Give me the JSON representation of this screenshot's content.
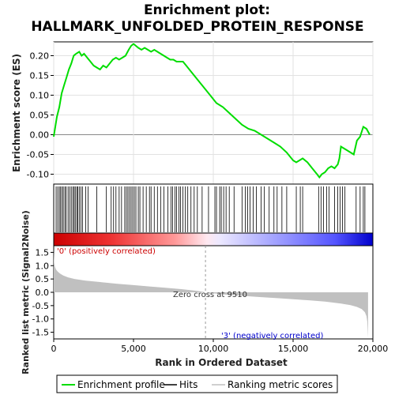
{
  "chart_data": {
    "type": "line",
    "title_line1": "Enrichment plot:",
    "title_line2": "HALLMARK_UNFOLDED_PROTEIN_RESPONSE",
    "xlabel": "Rank in Ordered Dataset",
    "xlim": [
      0,
      20000
    ],
    "x_ticks": [
      0,
      5000,
      10000,
      15000,
      20000
    ],
    "x_tick_labels": [
      "0",
      "5,000",
      "10,000",
      "15,000",
      "20,000"
    ],
    "es_panel": {
      "ylabel": "Enrichment score (ES)",
      "ylim": [
        -0.125,
        0.235
      ],
      "y_ticks": [
        -0.1,
        -0.05,
        0.0,
        0.05,
        0.1,
        0.15,
        0.2
      ],
      "y_tick_labels": [
        "-0.10",
        "-0.05",
        "0.00",
        "0.05",
        "0.10",
        "0.15",
        "0.20"
      ],
      "grid": true,
      "line_color": "#00dd00",
      "series": [
        {
          "x": [
            0,
            200,
            350,
            500,
            650,
            800,
            950,
            1100,
            1250,
            1400,
            1600,
            1750,
            1900,
            2100,
            2300,
            2500,
            2700,
            2900,
            3100,
            3300,
            3500,
            3700,
            3900,
            4100,
            4300,
            4500,
            4700,
            4850,
            5000,
            5150,
            5300,
            5500,
            5700,
            5900,
            6100,
            6300,
            6500,
            6700,
            6900,
            7100,
            7300,
            7500,
            7700,
            7900,
            8100,
            8300,
            8600,
            9000,
            9400,
            9800,
            10200,
            10600,
            11000,
            11400,
            11800,
            12200,
            12600,
            13000,
            13400,
            13800,
            14200,
            14600,
            15000,
            15200,
            15400,
            15600,
            15900,
            16200,
            16500,
            16650,
            16800,
            17000,
            17200,
            17400,
            17600,
            17800,
            17900,
            18000,
            18200,
            18400,
            18600,
            18800,
            19000,
            19200,
            19400,
            19600,
            19800
          ],
          "y": [
            -0.005,
            0.045,
            0.07,
            0.105,
            0.125,
            0.145,
            0.165,
            0.18,
            0.2,
            0.205,
            0.21,
            0.2,
            0.205,
            0.195,
            0.185,
            0.175,
            0.17,
            0.165,
            0.175,
            0.17,
            0.18,
            0.19,
            0.195,
            0.19,
            0.195,
            0.2,
            0.215,
            0.225,
            0.23,
            0.225,
            0.22,
            0.215,
            0.22,
            0.215,
            0.21,
            0.215,
            0.21,
            0.205,
            0.2,
            0.195,
            0.19,
            0.19,
            0.185,
            0.185,
            0.185,
            0.175,
            0.16,
            0.14,
            0.12,
            0.1,
            0.08,
            0.07,
            0.055,
            0.04,
            0.025,
            0.015,
            0.01,
            0.0,
            -0.01,
            -0.02,
            -0.03,
            -0.045,
            -0.065,
            -0.07,
            -0.065,
            -0.06,
            -0.07,
            -0.085,
            -0.1,
            -0.108,
            -0.1,
            -0.095,
            -0.085,
            -0.08,
            -0.085,
            -0.075,
            -0.06,
            -0.03,
            -0.035,
            -0.04,
            -0.045,
            -0.05,
            -0.015,
            -0.005,
            0.02,
            0.015,
            0.0
          ]
        }
      ]
    },
    "hits": {
      "legend": "Hits",
      "positions": [
        150,
        250,
        350,
        430,
        520,
        600,
        700,
        780,
        900,
        1000,
        1100,
        1200,
        1280,
        1350,
        1450,
        1500,
        1600,
        1700,
        1800,
        2000,
        2150,
        2700,
        3300,
        3600,
        3750,
        3900,
        4100,
        4250,
        4450,
        4550,
        4650,
        4750,
        4850,
        4950,
        5050,
        5150,
        5300,
        5400,
        5600,
        5800,
        6000,
        6100,
        6300,
        6500,
        6700,
        6900,
        7150,
        7350,
        7450,
        7600,
        7700,
        7850,
        7950,
        8100,
        8250,
        8400,
        8600,
        8800,
        9000,
        9300,
        9700,
        10100,
        10200,
        10400,
        10500,
        10650,
        10800,
        11000,
        11300,
        11800,
        12000,
        12150,
        12300,
        12500,
        12700,
        13000,
        13200,
        13500,
        13800,
        14000,
        14300,
        14600,
        15200,
        15450,
        15600,
        16600,
        16750,
        16900,
        17100,
        17250,
        17600,
        17800,
        17950,
        18100,
        18250,
        18950,
        19200,
        19400,
        19500
      ]
    },
    "rank_panel": {
      "ylabel": "Ranked list metric (Signal2Noise)",
      "ylim": [
        -1.75,
        1.75
      ],
      "y_ticks": [
        -1.5,
        -1.0,
        -0.5,
        0.0,
        0.5,
        1.0,
        1.5
      ],
      "y_tick_labels": [
        "-1.5",
        "-1.0",
        "-0.5",
        "0.0",
        "0.5",
        "1.0",
        "1.5"
      ],
      "fill_color": "#c0c0c0",
      "series": [
        {
          "x": [
            0,
            30,
            80,
            150,
            250,
            400,
            600,
            900,
            1300,
            2000,
            3000,
            4000,
            5000,
            6000,
            7000,
            8000,
            9000,
            9510,
            10000,
            11000,
            12000,
            13000,
            14000,
            15000,
            16000,
            17000,
            18000,
            18600,
            19000,
            19300,
            19500,
            19600,
            19650,
            19700
          ],
          "y": [
            1.65,
            1.1,
            0.95,
            0.85,
            0.78,
            0.7,
            0.63,
            0.56,
            0.5,
            0.44,
            0.38,
            0.32,
            0.27,
            0.22,
            0.17,
            0.12,
            0.05,
            0.0,
            -0.04,
            -0.1,
            -0.14,
            -0.18,
            -0.22,
            -0.26,
            -0.3,
            -0.35,
            -0.42,
            -0.48,
            -0.55,
            -0.63,
            -0.75,
            -0.9,
            -1.1,
            -1.7
          ]
        }
      ],
      "zero_cross_label": "Zero cross at 9510",
      "zero_cross": 9510,
      "pos_label": "'0' (positively correlated)",
      "neg_label": "'3' (negatively correlated)"
    },
    "legend": {
      "placement": "bottom",
      "entries": [
        "Enrichment profile",
        "Hits",
        "Ranking metric scores"
      ]
    }
  }
}
